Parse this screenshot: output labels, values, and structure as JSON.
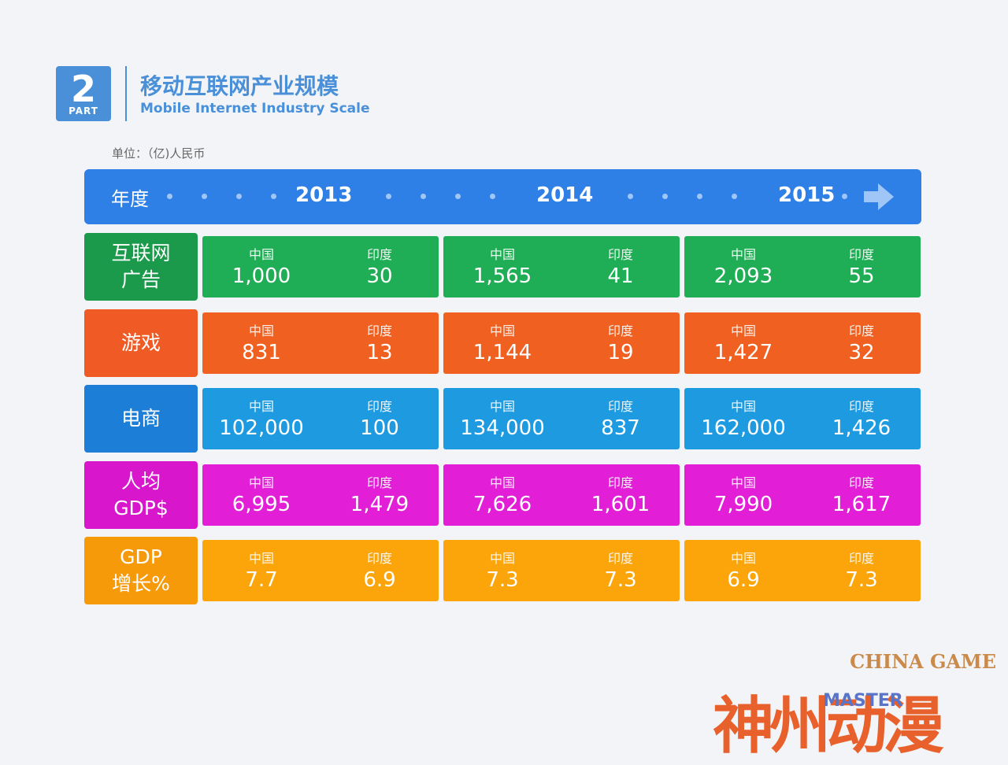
{
  "header": {
    "part_number": "2",
    "part_word": "PART",
    "title_cn": "移动互联网产业规模",
    "title_en": "Mobile Internet Industry Scale",
    "unit": "单位：（亿)人民币"
  },
  "timeline": {
    "label": "年度",
    "years": [
      "2013",
      "2014",
      "2015"
    ]
  },
  "country_labels": {
    "china": "中国",
    "india": "印度"
  },
  "rows": [
    {
      "label_line1": "互联网",
      "label_line2": "广告",
      "color": "#1fae55",
      "values": [
        [
          "1,000",
          "30"
        ],
        [
          "1,565",
          "41"
        ],
        [
          "2,093",
          "55"
        ]
      ]
    },
    {
      "label_line1": "游戏",
      "label_line2": "",
      "color": "#f06020",
      "values": [
        [
          "831",
          "13"
        ],
        [
          "1,144",
          "19"
        ],
        [
          "1,427",
          "32"
        ]
      ]
    },
    {
      "label_line1": "电商",
      "label_line2": "",
      "color": "#1d9ae0",
      "values": [
        [
          "102,000",
          "100"
        ],
        [
          "134,000",
          "837"
        ],
        [
          "162,000",
          "1,426"
        ]
      ]
    },
    {
      "label_line1": "人均",
      "label_line2": "GDP$",
      "color": "#e21fd6",
      "values": [
        [
          "6,995",
          "1,479"
        ],
        [
          "7,626",
          "1,601"
        ],
        [
          "7,990",
          "1,617"
        ]
      ]
    },
    {
      "label_line1": "GDP",
      "label_line2": "增长%",
      "color": "#fba50b",
      "values": [
        [
          "7.7",
          "6.9"
        ],
        [
          "7.3",
          "7.3"
        ],
        [
          "6.9",
          "7.3"
        ]
      ]
    }
  ],
  "colors": {
    "timeline_bar": "#2e7fe6",
    "label_bg": [
      "#1b9a4b",
      "#f05a24",
      "#1c7ed6",
      "#d817cc",
      "#f79a0a"
    ]
  },
  "chart_data": {
    "type": "table",
    "columns": [
      "2013",
      "2014",
      "2015"
    ],
    "sub_columns": [
      "中国",
      "印度"
    ],
    "rows": [
      {
        "name": "互联网广告",
        "china": [
          1000,
          1565,
          2093
        ],
        "india": [
          30,
          41,
          55
        ]
      },
      {
        "name": "游戏",
        "china": [
          831,
          1144,
          1427
        ],
        "india": [
          13,
          19,
          32
        ]
      },
      {
        "name": "电商",
        "china": [
          102000,
          134000,
          162000
        ],
        "india": [
          100,
          837,
          1426
        ]
      },
      {
        "name": "人均GDP$",
        "china": [
          6995,
          7626,
          7990
        ],
        "india": [
          1479,
          1601,
          1617
        ]
      },
      {
        "name": "GDP增长%",
        "china": [
          7.7,
          7.3,
          6.9
        ],
        "india": [
          6.9,
          7.3,
          7.3
        ]
      }
    ],
    "title": "移动互联网产业规模",
    "unit": "单位：（亿)人民币"
  },
  "watermark": {
    "brand_en": "CHINA GAME",
    "brand_cn": "神州动漫",
    "brand_small": "MASTER"
  }
}
